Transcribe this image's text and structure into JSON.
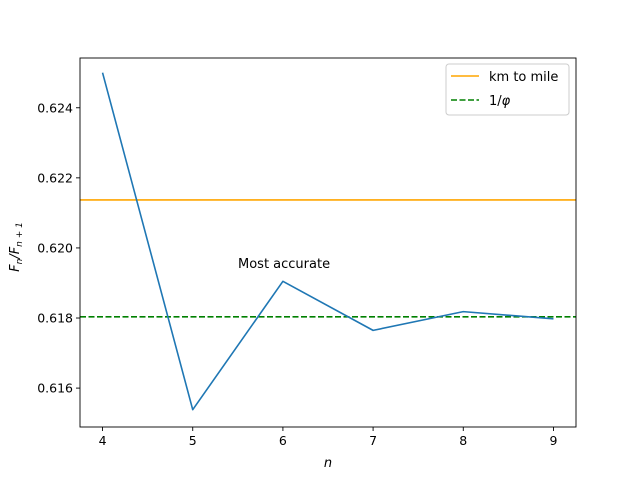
{
  "chart_data": {
    "type": "line",
    "xlabel": "n",
    "ylabel": "F_n/F_{n+1}",
    "xlim": [
      3.75,
      9.25
    ],
    "ylim": [
      0.61489,
      0.62542
    ],
    "x_ticks": [
      4,
      5,
      6,
      7,
      8,
      9
    ],
    "y_ticks": [
      0.616,
      0.618,
      0.62,
      0.622,
      0.624
    ],
    "y_tick_labels": [
      "0.616",
      "0.618",
      "0.620",
      "0.622",
      "0.624"
    ],
    "series": [
      {
        "x": [
          4,
          5,
          6,
          7,
          8,
          9
        ],
        "values": [
          0.625,
          0.615385,
          0.619048,
          0.617647,
          0.618182,
          0.617978
        ],
        "color": "#1f77b4"
      }
    ],
    "reference_lines": [
      {
        "name": "km to mile",
        "y": 0.621371,
        "color": "#ffa500",
        "style": "solid"
      },
      {
        "name": "1/φ",
        "y": 0.618034,
        "color": "#008000",
        "style": "dashed"
      }
    ],
    "annotation": {
      "text": "Most accurate",
      "x": 5.5,
      "y": 0.6195
    },
    "legend_position": "upper right",
    "grid": false
  }
}
